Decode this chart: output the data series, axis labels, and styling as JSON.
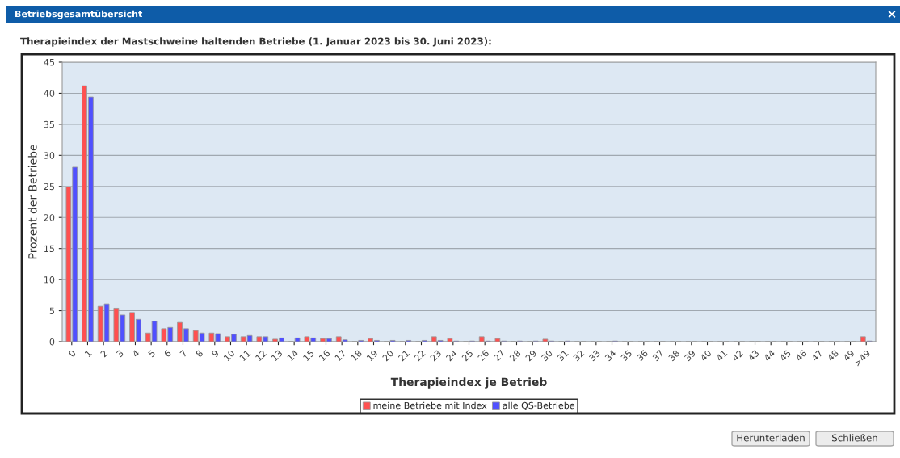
{
  "chart_data": {
    "type": "bar",
    "title": "Therapieindex der Mastschweine haltenden Betriebe (1. Januar 2023 bis 30. Juni 2023):",
    "xlabel": "Therapieindex je Betrieb",
    "ylabel": "Prozent der Betriebe",
    "categories": [
      "0",
      "1",
      "2",
      "3",
      "4",
      "5",
      "6",
      "7",
      "8",
      "9",
      "10",
      "11",
      "12",
      "13",
      "14",
      "15",
      "16",
      "17",
      "18",
      "19",
      "20",
      "21",
      "22",
      "23",
      "24",
      "25",
      "26",
      "27",
      "28",
      "29",
      "30",
      "31",
      "32",
      "33",
      "34",
      "35",
      "36",
      "37",
      "38",
      "39",
      "40",
      "41",
      "42",
      "43",
      "44",
      "45",
      "46",
      "47",
      "48",
      "49",
      ">49"
    ],
    "series": [
      {
        "name": "meine Betriebe mit Index",
        "color": "#ff5050",
        "values": [
          24.9,
          41.2,
          5.7,
          5.4,
          4.7,
          1.4,
          2.1,
          3.1,
          1.8,
          1.4,
          0.8,
          0.8,
          0.8,
          0.4,
          0,
          0.8,
          0.5,
          0.8,
          0,
          0.5,
          0,
          0,
          0,
          0.8,
          0.5,
          0,
          0.8,
          0.5,
          0,
          0,
          0.4,
          0,
          0,
          0,
          0,
          0,
          0,
          0,
          0,
          0,
          0,
          0,
          0,
          0,
          0,
          0,
          0,
          0,
          0,
          0,
          0.8
        ]
      },
      {
        "name": "alle QS-Betriebe",
        "color": "#5050ff",
        "values": [
          28.1,
          39.4,
          6.1,
          4.3,
          3.6,
          3.3,
          2.3,
          2.1,
          1.4,
          1.3,
          1.2,
          1.0,
          0.8,
          0.6,
          0.6,
          0.6,
          0.5,
          0.3,
          0.2,
          0.2,
          0.2,
          0.2,
          0.2,
          0.2,
          0.1,
          0.1,
          0.1,
          0.1,
          0.1,
          0.1,
          0.1,
          0.1,
          0,
          0,
          0.1,
          0,
          0,
          0,
          0,
          0,
          0,
          0,
          0,
          0,
          0,
          0,
          0,
          0,
          0,
          0,
          0.1
        ]
      }
    ],
    "ylim": [
      0,
      45
    ],
    "yticks": [
      0,
      5,
      10,
      15,
      20,
      25,
      30,
      35,
      40,
      45
    ],
    "grid": "y",
    "legend": "bottom",
    "annotations": [
      "Betriebsgesamtübersicht",
      "×",
      "Herunterladen",
      "Schließen"
    ]
  }
}
